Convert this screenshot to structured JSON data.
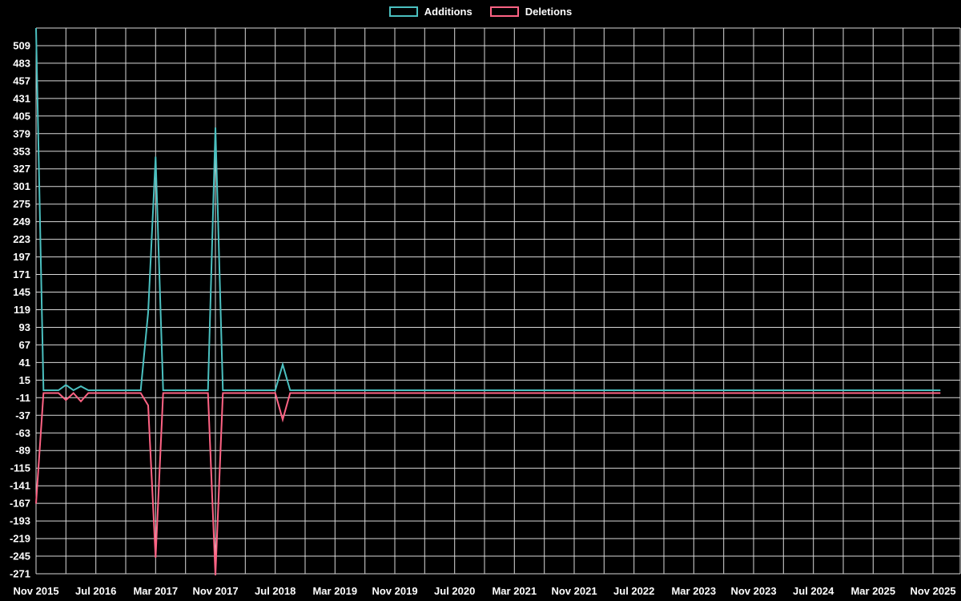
{
  "page": {
    "background": "#000000"
  },
  "legend": {
    "position": "top",
    "items": [
      {
        "label": "Additions",
        "color": "#4bc0c0"
      },
      {
        "label": "Deletions",
        "color": "#ff6384"
      }
    ]
  },
  "chart_data": {
    "type": "line",
    "title": "",
    "x_unit": "month",
    "x_range": [
      "Nov 2015",
      "Dec 2025"
    ],
    "x_tick_labels": [
      "Nov 2015",
      "Jul 2016",
      "Mar 2017",
      "Nov 2017",
      "Jul 2018",
      "Mar 2019",
      "Nov 2019",
      "Jul 2020",
      "Mar 2021",
      "Nov 2021",
      "Jul 2022",
      "Mar 2023",
      "Nov 2023",
      "Jul 2024",
      "Mar 2025",
      "Nov 2025"
    ],
    "x_label_interval_months": 8,
    "x_grid_interval_months": 4,
    "y_axis": {
      "min": -271,
      "max": 535,
      "tick_step": 26
    },
    "y_ticks": [
      509,
      483,
      457,
      431,
      405,
      379,
      353,
      327,
      301,
      275,
      249,
      223,
      197,
      171,
      145,
      119,
      93,
      67,
      41,
      15,
      -11,
      -37,
      -63,
      -89,
      -115,
      -141,
      -167,
      -193,
      -219,
      -245,
      -271
    ],
    "grid": {
      "visible": true,
      "color": "#d9d9d9"
    },
    "baseline_value": 0,
    "legend_position": "top",
    "series": [
      {
        "name": "Additions",
        "color": "#4bc0c0",
        "nonzero_points": [
          {
            "month": "Nov 2015",
            "value": 535
          },
          {
            "month": "Mar 2016",
            "value": 8
          },
          {
            "month": "May 2016",
            "value": 6
          },
          {
            "month": "Feb 2017",
            "value": 115
          },
          {
            "month": "Mar 2017",
            "value": 345
          },
          {
            "month": "Nov 2017",
            "value": 388
          },
          {
            "month": "Aug 2018",
            "value": 38
          }
        ]
      },
      {
        "name": "Deletions",
        "color": "#ff6384",
        "nonzero_points": [
          {
            "month": "Nov 2015",
            "value": -165
          },
          {
            "month": "Mar 2016",
            "value": -12
          },
          {
            "month": "May 2016",
            "value": -14
          },
          {
            "month": "Feb 2017",
            "value": -20
          },
          {
            "month": "Mar 2017",
            "value": -245
          },
          {
            "month": "Nov 2017",
            "value": -271
          },
          {
            "month": "Aug 2018",
            "value": -41
          }
        ]
      }
    ]
  }
}
